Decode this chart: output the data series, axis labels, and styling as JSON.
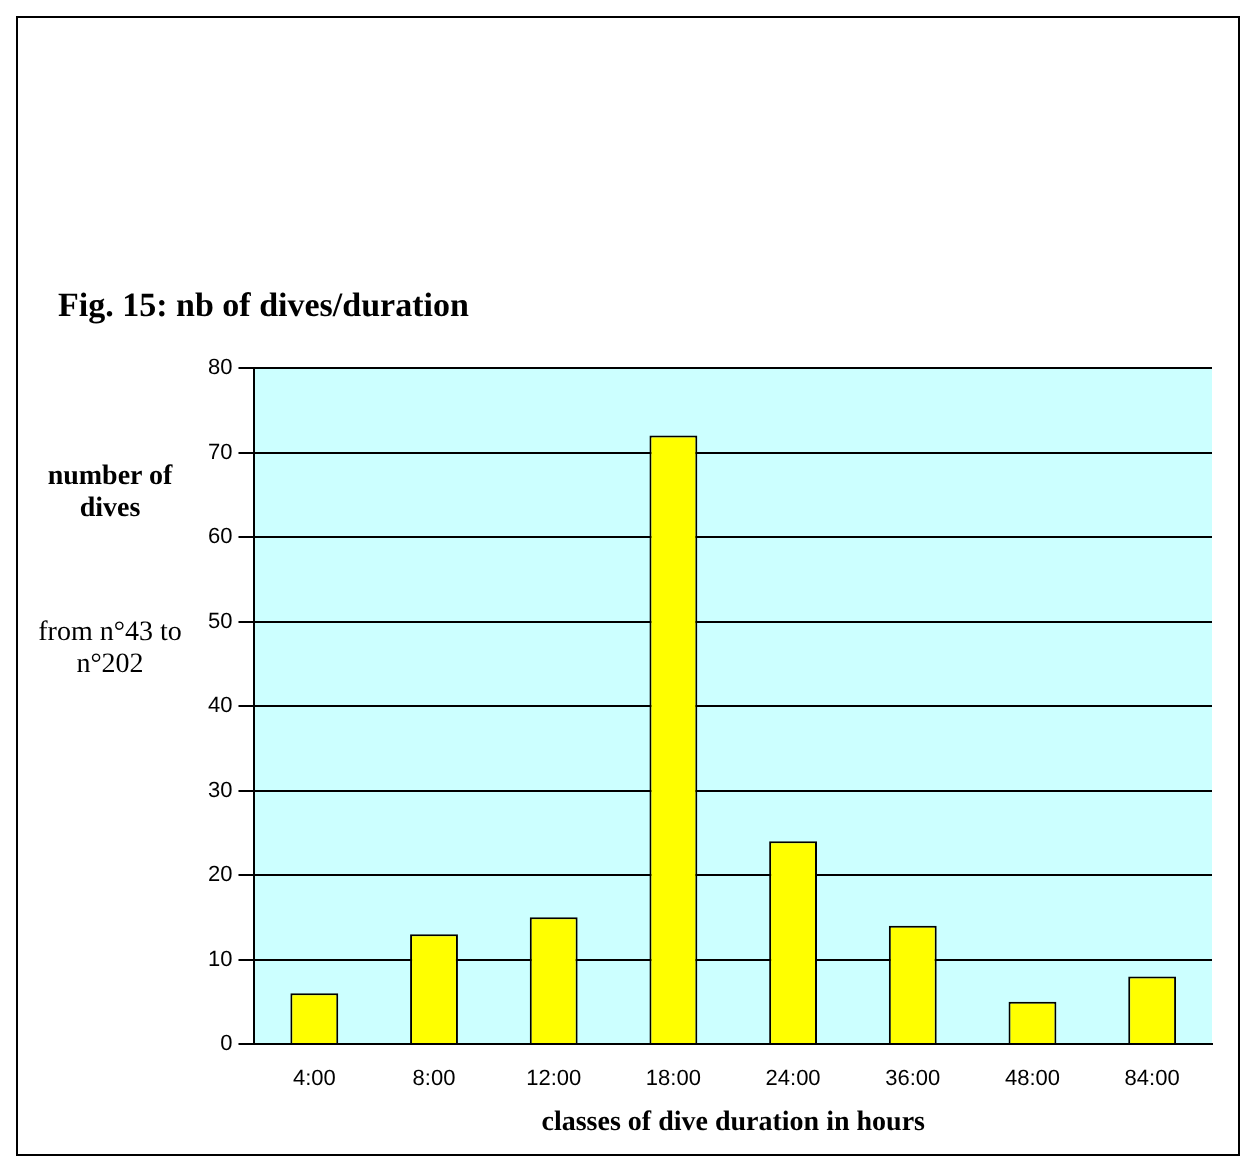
{
  "chart_data": {
    "type": "bar",
    "title": "Fig. 15: nb of dives/duration",
    "xlabel": "classes of dive duration in hours",
    "ylabel": "number of dives",
    "annotations": [
      "from n°43 to n°202"
    ],
    "categories": [
      "4:00",
      "8:00",
      "12:00",
      "18:00",
      "24:00",
      "36:00",
      "48:00",
      "84:00"
    ],
    "values": [
      6,
      13,
      15,
      72,
      24,
      14,
      5,
      8
    ],
    "color": "#ffff00",
    "ylim": [
      0,
      80
    ],
    "yticks": [
      0,
      10,
      20,
      30,
      40,
      50,
      60,
      70,
      80
    ],
    "grid": "y",
    "legend": false
  }
}
